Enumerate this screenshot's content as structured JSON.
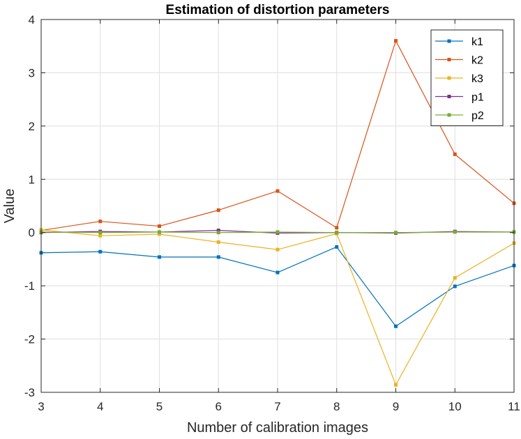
{
  "chart_data": {
    "type": "line",
    "title": "Estimation of distortion parameters",
    "xlabel": "Number of calibration images",
    "ylabel": "Value",
    "xlim": [
      3,
      11
    ],
    "ylim": [
      -3,
      4
    ],
    "x": [
      3,
      4,
      5,
      6,
      7,
      8,
      9,
      10,
      11
    ],
    "xticks": [
      "3",
      "4",
      "5",
      "6",
      "7",
      "8",
      "9",
      "10",
      "11"
    ],
    "yticks": [
      "-3",
      "-2",
      "-1",
      "0",
      "1",
      "2",
      "3",
      "4"
    ],
    "grid": true,
    "legend_position": "top-right",
    "series": [
      {
        "name": "k1",
        "color": "#0072BD",
        "values": [
          -0.38,
          -0.36,
          -0.46,
          -0.46,
          -0.75,
          -0.27,
          -1.76,
          -1.01,
          -0.62
        ]
      },
      {
        "name": "k2",
        "color": "#D95319",
        "values": [
          0.04,
          0.21,
          0.12,
          0.42,
          0.78,
          0.09,
          3.6,
          1.47,
          0.55
        ]
      },
      {
        "name": "k3",
        "color": "#EDB120",
        "values": [
          0.05,
          -0.06,
          -0.03,
          -0.18,
          -0.32,
          -0.02,
          -2.86,
          -0.85,
          -0.2
        ]
      },
      {
        "name": "p1",
        "color": "#7E2F8E",
        "values": [
          0.0,
          0.02,
          0.01,
          0.04,
          -0.01,
          0.0,
          -0.01,
          0.02,
          0.01
        ]
      },
      {
        "name": "p2",
        "color": "#77AC30",
        "values": [
          0.01,
          0.0,
          0.01,
          0.0,
          0.01,
          0.0,
          0.0,
          0.01,
          0.01
        ]
      }
    ]
  }
}
